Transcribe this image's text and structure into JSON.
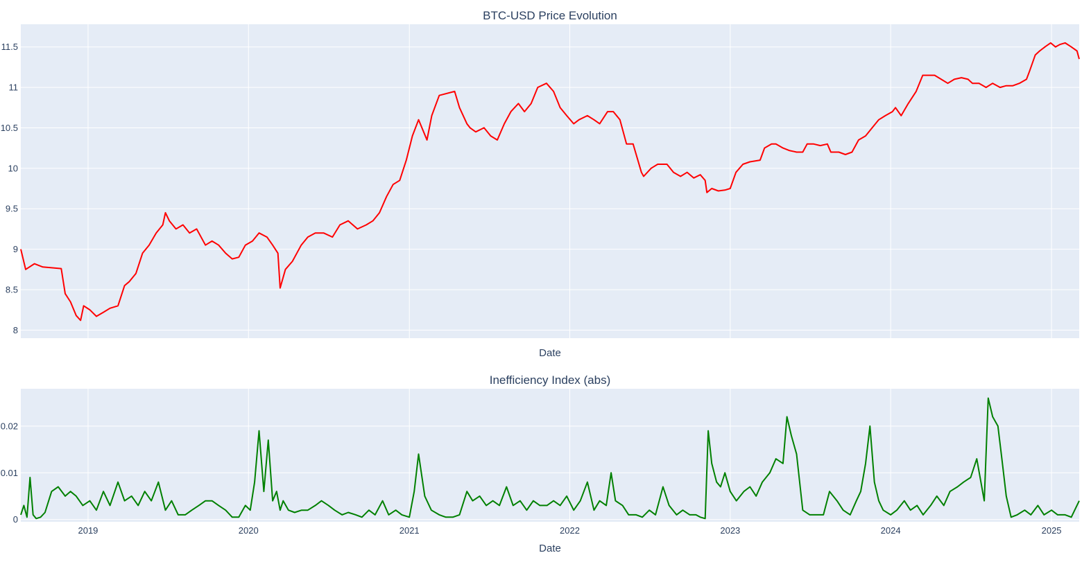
{
  "chart_data": [
    {
      "type": "line",
      "title": "BTC-USD Price Evolution",
      "xlabel": "Date",
      "ylabel": "",
      "ylim": [
        7.9,
        11.78
      ],
      "xlim": [
        "2018-08-01",
        "2025-03-05"
      ],
      "grid": true,
      "legend": "none",
      "yticks": [
        8,
        8.5,
        9,
        9.5,
        10,
        10.5,
        11,
        11.5
      ],
      "ytick_labels": [
        "8",
        "8.5",
        "9",
        "9.5",
        "10",
        "10.5",
        "11",
        "11.5"
      ],
      "xticks": [
        "2019-01-01",
        "2020-01-01",
        "2021-01-01",
        "2022-01-01",
        "2023-01-01",
        "2024-01-01",
        "2025-01-01"
      ],
      "xtick_labels": [],
      "series": [
        {
          "color": "#ff0000",
          "x": [
            "2018-08-01",
            "2018-08-12",
            "2018-09-01",
            "2018-09-20",
            "2018-10-10",
            "2018-11-01",
            "2018-11-10",
            "2018-11-22",
            "2018-12-05",
            "2018-12-15",
            "2018-12-22",
            "2019-01-05",
            "2019-01-20",
            "2019-02-05",
            "2019-02-20",
            "2019-03-10",
            "2019-03-25",
            "2019-04-05",
            "2019-04-20",
            "2019-05-05",
            "2019-05-20",
            "2019-06-05",
            "2019-06-20",
            "2019-06-26",
            "2019-07-05",
            "2019-07-20",
            "2019-08-05",
            "2019-08-20",
            "2019-09-05",
            "2019-09-25",
            "2019-10-10",
            "2019-10-25",
            "2019-11-10",
            "2019-11-25",
            "2019-12-10",
            "2019-12-25",
            "2020-01-10",
            "2020-01-25",
            "2020-02-12",
            "2020-02-25",
            "2020-03-08",
            "2020-03-13",
            "2020-03-25",
            "2020-04-10",
            "2020-04-30",
            "2020-05-15",
            "2020-06-01",
            "2020-06-20",
            "2020-07-10",
            "2020-07-27",
            "2020-08-15",
            "2020-09-05",
            "2020-09-25",
            "2020-10-10",
            "2020-10-25",
            "2020-11-10",
            "2020-11-25",
            "2020-12-10",
            "2020-12-25",
            "2021-01-08",
            "2021-01-22",
            "2021-02-10",
            "2021-02-21",
            "2021-03-10",
            "2021-04-14",
            "2021-04-25",
            "2021-05-12",
            "2021-05-19",
            "2021-06-01",
            "2021-06-20",
            "2021-07-05",
            "2021-07-20",
            "2021-08-05",
            "2021-08-20",
            "2021-09-06",
            "2021-09-20",
            "2021-10-05",
            "2021-10-20",
            "2021-11-09",
            "2021-11-25",
            "2021-12-10",
            "2021-12-25",
            "2022-01-10",
            "2022-01-22",
            "2022-02-10",
            "2022-02-25",
            "2022-03-10",
            "2022-03-28",
            "2022-04-10",
            "2022-04-25",
            "2022-05-10",
            "2022-05-25",
            "2022-06-13",
            "2022-06-18",
            "2022-07-05",
            "2022-07-20",
            "2022-08-10",
            "2022-08-25",
            "2022-09-10",
            "2022-09-25",
            "2022-10-10",
            "2022-10-25",
            "2022-11-05",
            "2022-11-09",
            "2022-11-20",
            "2022-12-05",
            "2022-12-20",
            "2023-01-01",
            "2023-01-14",
            "2023-01-30",
            "2023-02-15",
            "2023-03-10",
            "2023-03-20",
            "2023-04-05",
            "2023-04-15",
            "2023-05-01",
            "2023-05-15",
            "2023-06-01",
            "2023-06-15",
            "2023-06-25",
            "2023-07-10",
            "2023-07-25",
            "2023-08-10",
            "2023-08-18",
            "2023-09-05",
            "2023-09-20",
            "2023-10-05",
            "2023-10-20",
            "2023-11-05",
            "2023-11-20",
            "2023-12-05",
            "2023-12-20",
            "2024-01-05",
            "2024-01-12",
            "2024-01-25",
            "2024-02-10",
            "2024-02-28",
            "2024-03-14",
            "2024-03-25",
            "2024-04-10",
            "2024-04-25",
            "2024-05-10",
            "2024-05-25",
            "2024-06-10",
            "2024-06-25",
            "2024-07-05",
            "2024-07-20",
            "2024-08-05",
            "2024-08-20",
            "2024-09-06",
            "2024-09-20",
            "2024-10-05",
            "2024-10-20",
            "2024-11-05",
            "2024-11-12",
            "2024-11-25",
            "2024-12-05",
            "2024-12-17",
            "2024-12-30",
            "2025-01-10",
            "2025-01-20",
            "2025-02-01",
            "2025-02-15",
            "2025-02-28",
            "2025-03-05"
          ],
          "y": [
            9.0,
            8.75,
            8.82,
            8.78,
            8.77,
            8.76,
            8.45,
            8.35,
            8.18,
            8.12,
            8.3,
            8.25,
            8.17,
            8.22,
            8.27,
            8.3,
            8.55,
            8.6,
            8.7,
            8.95,
            9.05,
            9.2,
            9.3,
            9.45,
            9.35,
            9.25,
            9.3,
            9.2,
            9.25,
            9.05,
            9.1,
            9.05,
            8.95,
            8.88,
            8.9,
            9.05,
            9.1,
            9.2,
            9.15,
            9.05,
            8.95,
            8.52,
            8.75,
            8.85,
            9.05,
            9.15,
            9.2,
            9.2,
            9.15,
            9.3,
            9.35,
            9.25,
            9.3,
            9.35,
            9.45,
            9.65,
            9.8,
            9.85,
            10.1,
            10.4,
            10.6,
            10.35,
            10.65,
            10.9,
            10.95,
            10.75,
            10.55,
            10.5,
            10.45,
            10.5,
            10.4,
            10.35,
            10.55,
            10.7,
            10.8,
            10.7,
            10.8,
            11.0,
            11.05,
            10.95,
            10.75,
            10.65,
            10.55,
            10.6,
            10.65,
            10.6,
            10.55,
            10.7,
            10.7,
            10.6,
            10.3,
            10.3,
            9.95,
            9.9,
            10.0,
            10.05,
            10.05,
            9.95,
            9.9,
            9.95,
            9.88,
            9.92,
            9.85,
            9.7,
            9.75,
            9.72,
            9.73,
            9.75,
            9.95,
            10.05,
            10.08,
            10.1,
            10.25,
            10.3,
            10.3,
            10.25,
            10.22,
            10.2,
            10.2,
            10.3,
            10.3,
            10.28,
            10.3,
            10.2,
            10.2,
            10.17,
            10.2,
            10.35,
            10.4,
            10.5,
            10.6,
            10.65,
            10.7,
            10.75,
            10.65,
            10.8,
            10.95,
            11.15,
            11.15,
            11.15,
            11.1,
            11.05,
            11.1,
            11.12,
            11.1,
            11.05,
            11.05,
            11.0,
            11.05,
            11.0,
            11.02,
            11.02,
            11.05,
            11.1,
            11.2,
            11.4,
            11.45,
            11.5,
            11.55,
            11.5,
            11.53,
            11.55,
            11.5,
            11.45,
            11.35
          ]
        }
      ]
    },
    {
      "type": "line",
      "title": "Inefficiency Index (abs)",
      "xlabel": "Date",
      "ylabel": "",
      "ylim": [
        -0.0005,
        0.028
      ],
      "xlim": [
        "2018-08-01",
        "2025-03-05"
      ],
      "grid": true,
      "legend": "none",
      "yticks": [
        0,
        0.01,
        0.02
      ],
      "ytick_labels": [
        "0",
        "0.01",
        "0.02"
      ],
      "xticks": [
        "2019-01-01",
        "2020-01-01",
        "2021-01-01",
        "2022-01-01",
        "2023-01-01",
        "2024-01-01",
        "2025-01-01"
      ],
      "xtick_labels": [
        "2019",
        "2020",
        "2021",
        "2022",
        "2023",
        "2024",
        "2025"
      ],
      "series": [
        {
          "color": "#008000",
          "x": [
            "2018-08-01",
            "2018-08-08",
            "2018-08-15",
            "2018-08-22",
            "2018-08-29",
            "2018-09-05",
            "2018-09-15",
            "2018-09-25",
            "2018-10-10",
            "2018-10-25",
            "2018-11-10",
            "2018-11-22",
            "2018-12-05",
            "2018-12-20",
            "2019-01-05",
            "2019-01-20",
            "2019-02-05",
            "2019-02-20",
            "2019-03-10",
            "2019-03-25",
            "2019-04-10",
            "2019-04-25",
            "2019-05-10",
            "2019-05-25",
            "2019-06-10",
            "2019-06-26",
            "2019-07-10",
            "2019-07-25",
            "2019-08-10",
            "2019-08-25",
            "2019-09-10",
            "2019-09-25",
            "2019-10-10",
            "2019-10-25",
            "2019-11-10",
            "2019-11-25",
            "2019-12-10",
            "2019-12-25",
            "2020-01-05",
            "2020-01-15",
            "2020-01-25",
            "2020-02-05",
            "2020-02-15",
            "2020-02-25",
            "2020-03-05",
            "2020-03-13",
            "2020-03-20",
            "2020-04-01",
            "2020-04-15",
            "2020-05-01",
            "2020-05-15",
            "2020-06-01",
            "2020-06-15",
            "2020-07-01",
            "2020-07-15",
            "2020-08-01",
            "2020-08-15",
            "2020-09-01",
            "2020-09-15",
            "2020-10-01",
            "2020-10-15",
            "2020-11-01",
            "2020-11-15",
            "2020-12-01",
            "2020-12-15",
            "2021-01-01",
            "2021-01-12",
            "2021-01-22",
            "2021-02-05",
            "2021-02-20",
            "2021-03-10",
            "2021-03-25",
            "2021-04-10",
            "2021-04-25",
            "2021-05-12",
            "2021-05-25",
            "2021-06-10",
            "2021-06-25",
            "2021-07-10",
            "2021-07-25",
            "2021-08-10",
            "2021-08-25",
            "2021-09-10",
            "2021-09-25",
            "2021-10-10",
            "2021-10-25",
            "2021-11-10",
            "2021-11-25",
            "2021-12-10",
            "2021-12-25",
            "2022-01-10",
            "2022-01-25",
            "2022-02-10",
            "2022-02-25",
            "2022-03-10",
            "2022-03-25",
            "2022-04-05",
            "2022-04-15",
            "2022-05-01",
            "2022-05-15",
            "2022-06-01",
            "2022-06-15",
            "2022-07-01",
            "2022-07-15",
            "2022-08-01",
            "2022-08-15",
            "2022-09-01",
            "2022-09-15",
            "2022-10-01",
            "2022-10-15",
            "2022-10-25",
            "2022-11-05",
            "2022-11-12",
            "2022-11-20",
            "2022-12-01",
            "2022-12-10",
            "2022-12-20",
            "2023-01-01",
            "2023-01-15",
            "2023-02-01",
            "2023-02-15",
            "2023-03-01",
            "2023-03-15",
            "2023-04-01",
            "2023-04-15",
            "2023-05-01",
            "2023-05-10",
            "2023-05-20",
            "2023-06-01",
            "2023-06-15",
            "2023-07-01",
            "2023-07-15",
            "2023-08-01",
            "2023-08-15",
            "2023-09-01",
            "2023-09-15",
            "2023-10-01",
            "2023-10-15",
            "2023-10-25",
            "2023-11-05",
            "2023-11-15",
            "2023-11-25",
            "2023-12-05",
            "2023-12-15",
            "2024-01-01",
            "2024-01-15",
            "2024-02-01",
            "2024-02-15",
            "2024-03-01",
            "2024-03-15",
            "2024-04-01",
            "2024-04-15",
            "2024-05-01",
            "2024-05-15",
            "2024-06-01",
            "2024-06-15",
            "2024-07-01",
            "2024-07-15",
            "2024-08-01",
            "2024-08-10",
            "2024-08-20",
            "2024-09-01",
            "2024-09-10",
            "2024-09-20",
            "2024-10-01",
            "2024-10-15",
            "2024-11-01",
            "2024-11-15",
            "2024-12-01",
            "2024-12-15",
            "2025-01-01",
            "2025-01-15",
            "2025-02-01",
            "2025-02-15",
            "2025-03-05"
          ],
          "y": [
            0.001,
            0.003,
            0.0005,
            0.009,
            0.001,
            0.0002,
            0.0005,
            0.0015,
            0.006,
            0.007,
            0.005,
            0.006,
            0.005,
            0.003,
            0.004,
            0.002,
            0.006,
            0.003,
            0.008,
            0.004,
            0.005,
            0.003,
            0.006,
            0.004,
            0.008,
            0.002,
            0.004,
            0.001,
            0.001,
            0.002,
            0.003,
            0.004,
            0.004,
            0.003,
            0.002,
            0.0005,
            0.0005,
            0.003,
            0.002,
            0.008,
            0.019,
            0.006,
            0.017,
            0.004,
            0.006,
            0.002,
            0.004,
            0.002,
            0.0015,
            0.002,
            0.002,
            0.003,
            0.004,
            0.003,
            0.002,
            0.001,
            0.0015,
            0.001,
            0.0005,
            0.002,
            0.001,
            0.004,
            0.001,
            0.002,
            0.001,
            0.0005,
            0.006,
            0.014,
            0.005,
            0.002,
            0.001,
            0.0005,
            0.0005,
            0.001,
            0.006,
            0.004,
            0.005,
            0.003,
            0.004,
            0.003,
            0.007,
            0.003,
            0.004,
            0.002,
            0.004,
            0.003,
            0.003,
            0.004,
            0.003,
            0.005,
            0.002,
            0.004,
            0.008,
            0.002,
            0.004,
            0.003,
            0.01,
            0.004,
            0.003,
            0.001,
            0.001,
            0.0005,
            0.002,
            0.001,
            0.007,
            0.003,
            0.001,
            0.002,
            0.001,
            0.001,
            0.0005,
            0.0002,
            0.019,
            0.012,
            0.008,
            0.007,
            0.01,
            0.006,
            0.004,
            0.006,
            0.007,
            0.005,
            0.008,
            0.01,
            0.013,
            0.012,
            0.022,
            0.018,
            0.014,
            0.002,
            0.001,
            0.001,
            0.001,
            0.006,
            0.004,
            0.002,
            0.001,
            0.004,
            0.006,
            0.012,
            0.02,
            0.008,
            0.004,
            0.002,
            0.001,
            0.002,
            0.004,
            0.002,
            0.003,
            0.001,
            0.003,
            0.005,
            0.003,
            0.006,
            0.007,
            0.008,
            0.009,
            0.013,
            0.004,
            0.026,
            0.022,
            0.02,
            0.013,
            0.005,
            0.0005,
            0.001,
            0.002,
            0.001,
            0.003,
            0.001,
            0.002,
            0.001,
            0.001,
            0.0005,
            0.004
          ]
        }
      ]
    }
  ]
}
